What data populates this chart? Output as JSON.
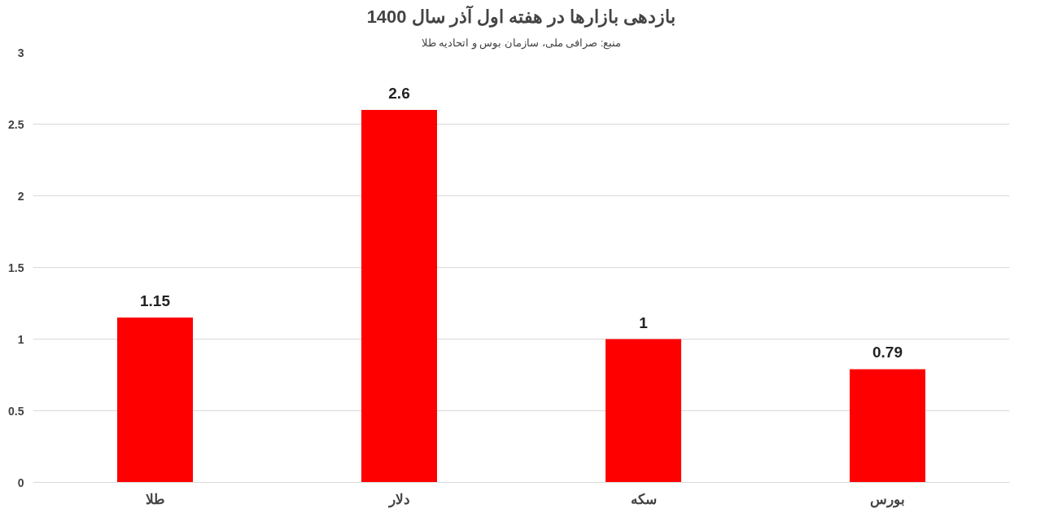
{
  "chart_data": {
    "type": "bar",
    "title": "بازدهی بازارها در هفته اول آذر سال 1400",
    "annotations": [
      "منبع: صرافی ملی، سازمان بوس و اتحادیه طلا"
    ],
    "categories": [
      "طلا",
      "دلار",
      "سکه",
      "بورس"
    ],
    "values": [
      1.15,
      2.6,
      1,
      0.79
    ],
    "color": "#ff0000",
    "ylim": [
      0,
      3
    ],
    "yticks": [
      0,
      0.5,
      1,
      1.5,
      2,
      2.5,
      3
    ],
    "grid": "y",
    "data_labels": true
  }
}
